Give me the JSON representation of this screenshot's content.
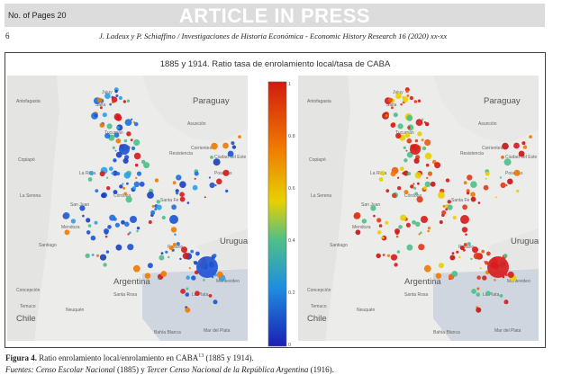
{
  "header": {
    "pages_label": "No. of Pages 20",
    "banner": "ARTICLE IN PRESS",
    "page_number": "6",
    "running_head": "J. Ladeux y P. Schiaffino / Investigaciones de Historia Económica - Economic History Research 16 (2020) xx-xx"
  },
  "figure": {
    "title": "1885 y 1914. Ratio tasa de enrolamiento local/tasa de CABA",
    "colorbar_ticks": [
      "1",
      "0.8",
      "0.6",
      "0.4",
      "0.2",
      "0"
    ],
    "map_labels": {
      "paraguay": "Paraguay",
      "asuncion": "Asunción",
      "uruguay": "Uruguay",
      "argentina": "Argentina",
      "chile": "Chile",
      "bahia_blanca": "Bahía Blanca",
      "rosario": "Rosario",
      "santiago": "Santiago",
      "cordoba": "Córdoba",
      "mar_del_plata": "Mar del Plata",
      "ciudad_del_este": "Ciudad del Este",
      "salta": "Salta",
      "jujuy": "Jujuy",
      "resistencia": "Resistencia",
      "corrientes": "Corrientes",
      "posadas": "Posadas",
      "tucuman": "Tucumán",
      "santa_fe": "Santa Fe",
      "mendoza": "Mendoza",
      "san_juan": "San Juan",
      "montevideo": "Montevideo",
      "la_plata": "La Plata",
      "antofagasta": "Antofagasta",
      "copiapo": "Copiapó",
      "la_serena": "La Serena",
      "concepcion": "Concepción",
      "temuco": "Temuco",
      "neuquen": "Neuquén",
      "la_rioja": "La Rioja",
      "santa_rosa": "Santa Rosa"
    },
    "caption_label": "Figura 4.",
    "caption_text": " Ratio enrolamiento local/enrolamiento en CABA",
    "caption_sup": "13",
    "caption_end": " (1885 y 1914).",
    "sources_label": "Fuentes: ",
    "sources_1": "Censo Escolar Nacional",
    "sources_2": " (1885) y ",
    "sources_3": "Tercer Censo Nacional de la República Argentina",
    "sources_4": " (1916)."
  },
  "colors": {
    "high": "#d7191c",
    "mid": "#4dbf8a",
    "low": "#2b3cc4"
  }
}
